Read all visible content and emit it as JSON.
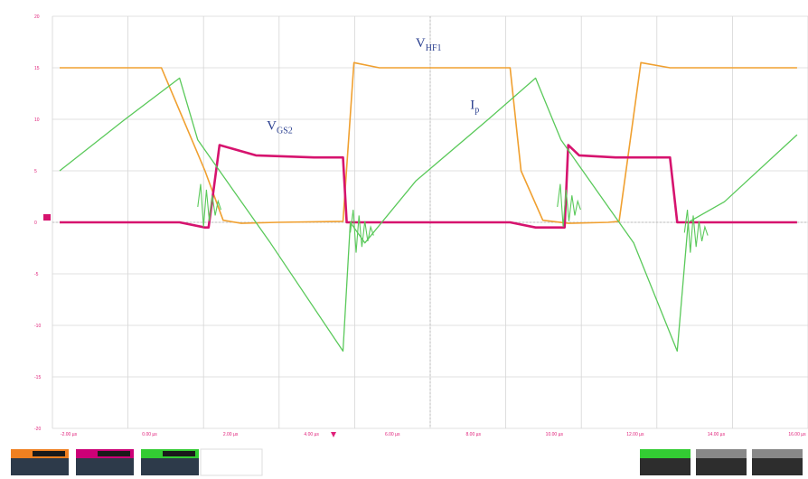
{
  "chart_data": {
    "type": "line",
    "x_ticks": [
      "-2.00 µs",
      "0.00 µs",
      "2.00 µs",
      "4.00 µs",
      "6.00 µs",
      "8.00 µs",
      "10.00 µs",
      "12.00 µs",
      "14.00 µs",
      "16.00 µs"
    ],
    "y_ticks": [
      "20",
      "15",
      "10",
      "5",
      "0",
      "-5",
      "-10",
      "-15",
      "-20"
    ],
    "ylim": [
      -20,
      20
    ],
    "grid": true,
    "annotations": [
      {
        "main": "V",
        "sub": "HF1",
        "series": "V_HF1"
      },
      {
        "main": "V",
        "sub": "GS2",
        "series": "V_GS2"
      },
      {
        "main": "I",
        "sub": "p",
        "series": "I_p"
      }
    ],
    "series": [
      {
        "id": "V_HF1",
        "color": "#f0a030",
        "x": [
          -2.8,
          0.0,
          1.2,
          1.7,
          2.2,
          3.2,
          5.0,
          5.3,
          6.0,
          8.0,
          9.6,
          9.9,
          10.5,
          11.2,
          12.3,
          12.6,
          13.2,
          14.0,
          16.2,
          17.5
        ],
        "values": [
          15.0,
          15.0,
          5.0,
          0.2,
          -0.1,
          0.0,
          0.1,
          15.5,
          15.0,
          15.0,
          15.0,
          5.0,
          0.2,
          -0.1,
          0.0,
          0.1,
          15.5,
          15.0,
          15.0,
          15.0
        ]
      },
      {
        "id": "V_GS2",
        "color": "#d6136e",
        "x": [
          -2.8,
          0.0,
          0.5,
          1.2,
          1.3,
          1.6,
          2.6,
          4.2,
          5.0,
          5.1,
          6.0,
          8.0,
          9.0,
          9.6,
          10.3,
          11.1,
          11.2,
          11.5,
          12.5,
          14.0,
          14.2,
          17.5
        ],
        "values": [
          0.0,
          0.0,
          0.0,
          -0.5,
          -0.5,
          7.5,
          6.5,
          6.3,
          6.3,
          0.0,
          0.0,
          0.0,
          0.0,
          0.0,
          -0.5,
          -0.5,
          7.5,
          6.5,
          6.3,
          6.3,
          0.0,
          0.0
        ]
      },
      {
        "id": "I_p",
        "color": "#5ac95a",
        "x": [
          -2.8,
          -1.0,
          0.5,
          1.0,
          3.0,
          5.0,
          5.2,
          5.6,
          7.0,
          9.0,
          10.3,
          11.0,
          13.0,
          14.2,
          14.5,
          15.5,
          17.5
        ],
        "values": [
          5.0,
          10.0,
          14.0,
          8.0,
          -2.0,
          -12.5,
          0.0,
          -2.0,
          4.0,
          10.0,
          14.0,
          8.0,
          -2.0,
          -12.5,
          0.0,
          2.0,
          8.5
        ]
      }
    ]
  },
  "scope_panels": {
    "channels": [
      {
        "color": "#f08020"
      },
      {
        "color": "#cc0077"
      },
      {
        "color": "#33cc33"
      }
    ],
    "right": [
      {
        "color": "#33cc33"
      },
      {
        "color": "#888888"
      },
      {
        "color": "#888888"
      }
    ]
  }
}
